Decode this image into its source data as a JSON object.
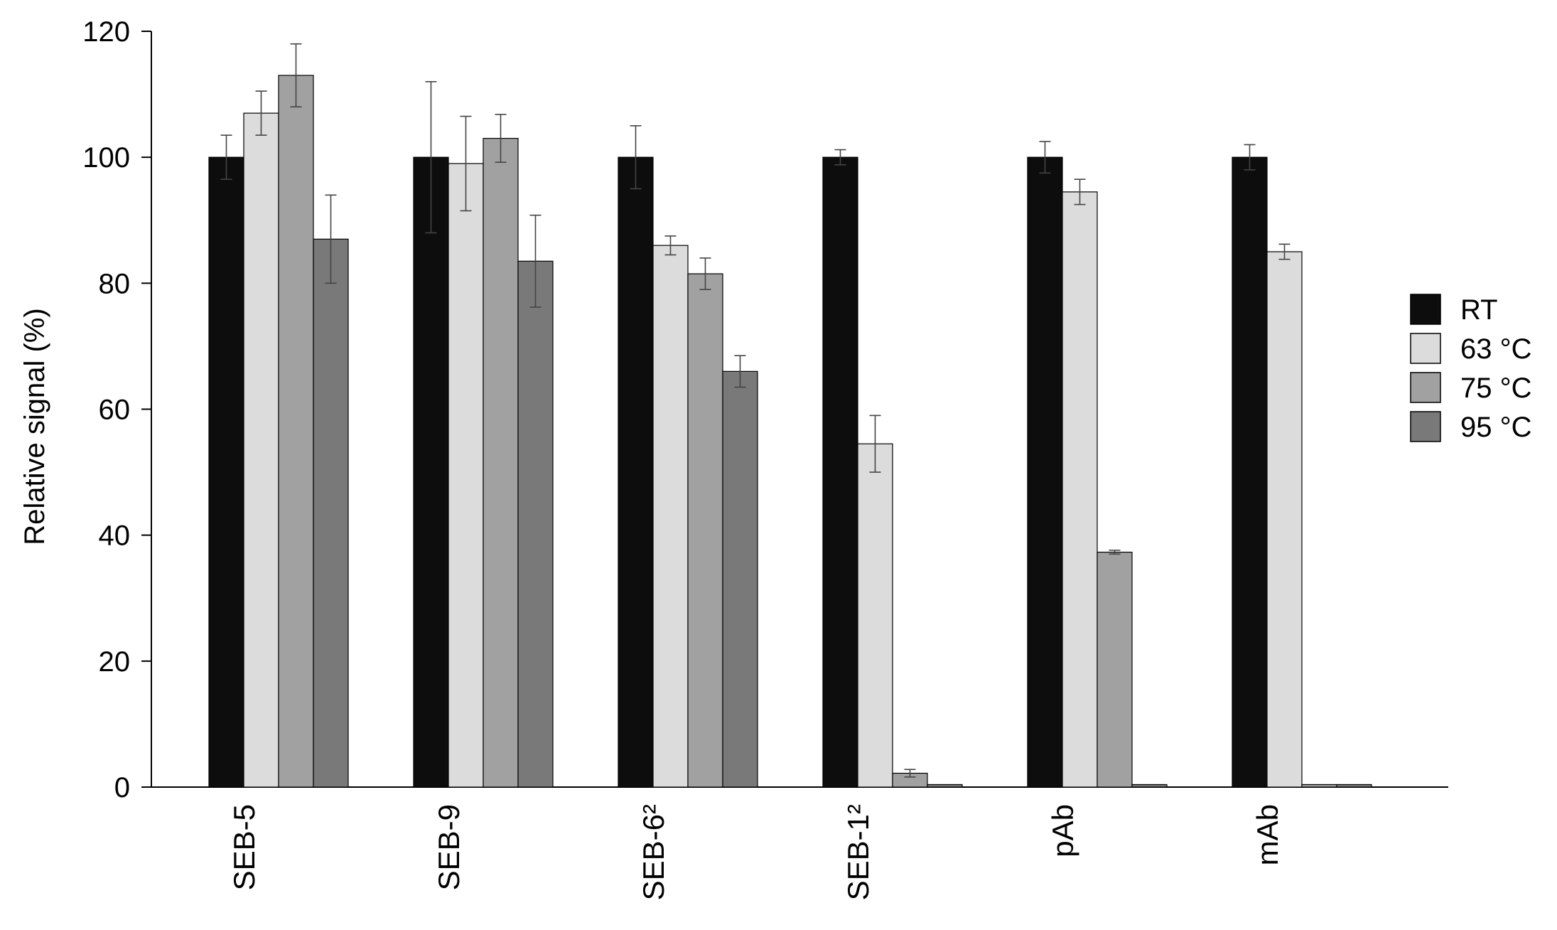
{
  "chart_data": {
    "type": "bar",
    "title": "",
    "xlabel": "",
    "ylabel": "Relative signal (%)",
    "ylim": [
      0,
      120
    ],
    "yticks": [
      "0",
      "20",
      "40",
      "60",
      "80",
      "100",
      "120"
    ],
    "categories": [
      "SEB-5",
      "SEB-9",
      "SEB-6²",
      "SEB-1²",
      "pAb",
      "mAb"
    ],
    "series": [
      {
        "name": "RT",
        "color": "#0d0d0d",
        "values": [
          100,
          100,
          100,
          100,
          100,
          100
        ],
        "errors": [
          3.5,
          12,
          5,
          1.2,
          2.5,
          2
        ]
      },
      {
        "name": "63 °C",
        "color": "#dcdcdc",
        "values": [
          107,
          99,
          86,
          54.5,
          94.5,
          85
        ],
        "errors": [
          3.5,
          7.5,
          1.5,
          4.5,
          2,
          1.2
        ]
      },
      {
        "name": "75 °C",
        "color": "#a1a1a1",
        "values": [
          113,
          103,
          81.5,
          2.2,
          37.3,
          0.4
        ],
        "errors": [
          5,
          3.8,
          2.5,
          0.6,
          0.3,
          0
        ]
      },
      {
        "name": "95 °C",
        "color": "#797979",
        "values": [
          87,
          83.5,
          66,
          0.4,
          0.4,
          0.4
        ],
        "errors": [
          7,
          7.3,
          2.5,
          0,
          0,
          0
        ]
      }
    ],
    "legend_position": "right",
    "grid": false
  }
}
